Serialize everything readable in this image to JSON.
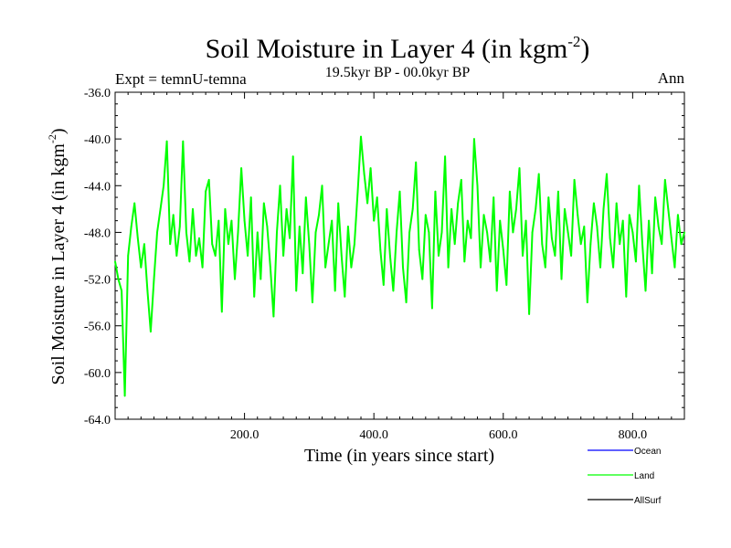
{
  "chart_data": {
    "type": "line",
    "title": "Soil Moisture in Layer 4 (in kgm",
    "title_sup": "-2",
    "title_close": ")",
    "subtitle": "19.5kyr BP - 00.0kyr BP",
    "left_label": "Expt = temnU-temna",
    "right_label": "Ann",
    "xlabel": "Time (in years since start)",
    "ylabel": "Soil Moisture in Layer 4 (in kgm",
    "ylabel_sup": "-2",
    "ylabel_close": ")",
    "xlim": [
      0,
      880
    ],
    "ylim": [
      -64.0,
      -36.0
    ],
    "xticks": [
      200,
      400,
      600,
      800
    ],
    "xtick_labels": [
      "200.0",
      "400.0",
      "600.0",
      "800.0"
    ],
    "yticks": [
      -36,
      -40,
      -44,
      -48,
      -52,
      -56,
      -60,
      -64
    ],
    "ytick_labels": [
      "-36.0",
      "-40.0",
      "-44.0",
      "-48.0",
      "-52.0",
      "-56.0",
      "-60.0",
      "-64.0"
    ],
    "legend": [
      {
        "name": "Ocean",
        "color": "#0000ff"
      },
      {
        "name": "Land",
        "color": "#00ff00"
      },
      {
        "name": "AllSurf",
        "color": "#000000"
      }
    ],
    "series": [
      {
        "name": "Land",
        "color": "#00ff00",
        "x": [
          0,
          5,
          10,
          15,
          20,
          25,
          30,
          35,
          40,
          45,
          50,
          55,
          60,
          65,
          70,
          75,
          80,
          85,
          90,
          95,
          100,
          105,
          110,
          115,
          120,
          125,
          130,
          135,
          140,
          145,
          150,
          155,
          160,
          165,
          170,
          175,
          180,
          185,
          190,
          195,
          200,
          205,
          210,
          215,
          220,
          225,
          230,
          235,
          240,
          245,
          250,
          255,
          260,
          265,
          270,
          275,
          280,
          285,
          290,
          295,
          300,
          305,
          310,
          315,
          320,
          325,
          330,
          335,
          340,
          345,
          350,
          355,
          360,
          365,
          370,
          375,
          380,
          385,
          390,
          395,
          400,
          405,
          410,
          415,
          420,
          425,
          430,
          435,
          440,
          445,
          450,
          455,
          460,
          465,
          470,
          475,
          480,
          485,
          490,
          495,
          500,
          505,
          510,
          515,
          520,
          525,
          530,
          535,
          540,
          545,
          550,
          555,
          560,
          565,
          570,
          575,
          580,
          585,
          590,
          595,
          600,
          605,
          610,
          615,
          620,
          625,
          630,
          635,
          640,
          645,
          650,
          655,
          660,
          665,
          670,
          675,
          680,
          685,
          690,
          695,
          700,
          705,
          710,
          715,
          720,
          725,
          730,
          735,
          740,
          745,
          750,
          755,
          760,
          765,
          770,
          775,
          780,
          785,
          790,
          795,
          800,
          805,
          810,
          815,
          820,
          825,
          830,
          835,
          840,
          845,
          850,
          855,
          860,
          865,
          870,
          875,
          880
        ],
        "values": [
          -50.5,
          -52.0,
          -53.0,
          -62.0,
          -50.0,
          -47.5,
          -45.5,
          -48.5,
          -51.0,
          -49.0,
          -53.0,
          -56.5,
          -52.0,
          -48.0,
          -46.0,
          -44.0,
          -40.2,
          -49.0,
          -46.5,
          -50.0,
          -47.5,
          -40.2,
          -48.0,
          -50.5,
          -46.0,
          -50.0,
          -48.5,
          -51.0,
          -44.5,
          -43.5,
          -49.0,
          -50.0,
          -47.0,
          -54.8,
          -46.0,
          -49.0,
          -47.0,
          -52.0,
          -48.0,
          -42.5,
          -47.0,
          -50.0,
          -45.0,
          -53.5,
          -48.0,
          -52.0,
          -45.5,
          -47.5,
          -51.0,
          -55.2,
          -48.0,
          -44.0,
          -50.0,
          -46.0,
          -48.5,
          -41.5,
          -53.0,
          -47.5,
          -51.5,
          -45.0,
          -49.0,
          -54.0,
          -48.0,
          -46.5,
          -44.0,
          -51.0,
          -49.0,
          -47.0,
          -53.0,
          -45.5,
          -50.0,
          -53.5,
          -47.5,
          -51.0,
          -49.0,
          -44.5,
          -39.8,
          -43.0,
          -45.5,
          -42.5,
          -47.0,
          -45.0,
          -49.5,
          -52.5,
          -46.0,
          -50.0,
          -53.0,
          -48.0,
          -44.5,
          -51.0,
          -54.0,
          -48.0,
          -46.0,
          -42.0,
          -49.5,
          -52.0,
          -46.5,
          -48.0,
          -54.5,
          -44.5,
          -50.0,
          -48.0,
          -41.5,
          -51.0,
          -46.0,
          -49.0,
          -45.5,
          -43.5,
          -50.5,
          -47.0,
          -48.5,
          -40.0,
          -44.0,
          -51.0,
          -46.5,
          -48.0,
          -50.5,
          -45.0,
          -53.0,
          -47.0,
          -49.5,
          -52.5,
          -44.5,
          -48.0,
          -46.0,
          -42.5,
          -50.0,
          -47.0,
          -55.0,
          -48.0,
          -46.0,
          -43.0,
          -49.0,
          -51.0,
          -45.0,
          -48.5,
          -50.0,
          -44.5,
          -52.0,
          -46.0,
          -48.0,
          -50.0,
          -43.5,
          -46.5,
          -49.0,
          -47.5,
          -54.0,
          -49.0,
          -45.5,
          -47.5,
          -51.0,
          -46.0,
          -43.0,
          -48.5,
          -51.0,
          -45.5,
          -49.0,
          -47.0,
          -53.5,
          -46.5,
          -48.0,
          -50.5,
          -44.0,
          -49.0,
          -53.0,
          -47.0,
          -51.5,
          -45.0,
          -47.5,
          -49.0,
          -43.5,
          -46.0,
          -48.5,
          -51.0,
          -46.5,
          -49.0,
          -48.0
        ]
      }
    ]
  }
}
